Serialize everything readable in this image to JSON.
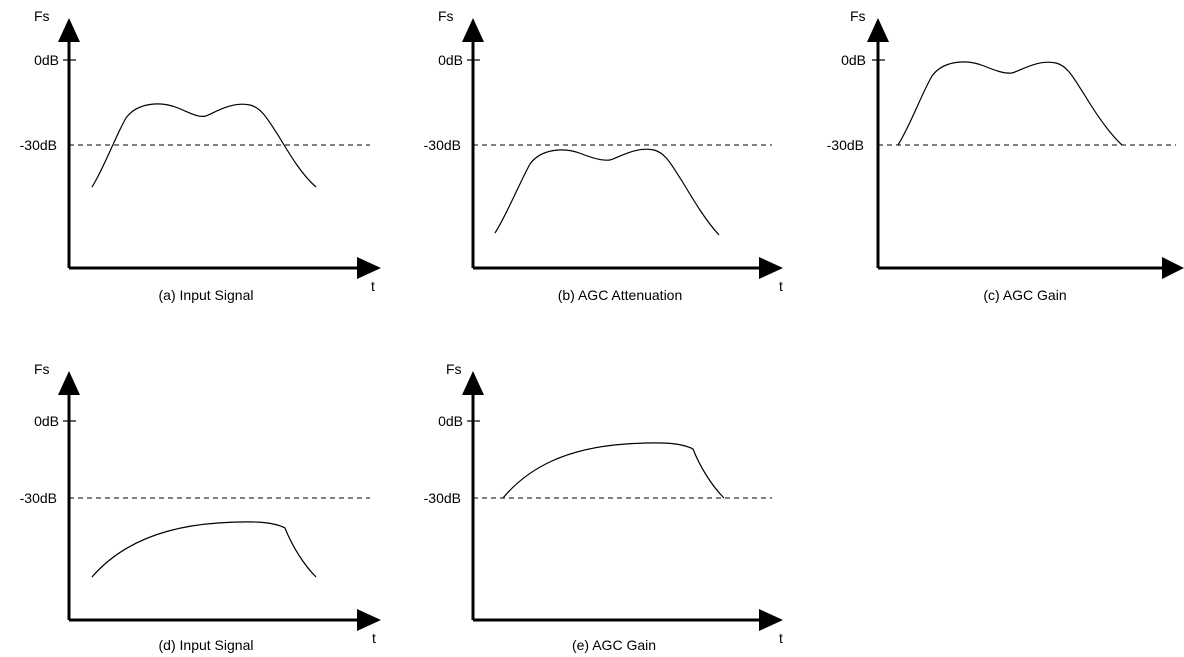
{
  "panels": [
    {
      "id": "a",
      "caption": "(a) Input Signal",
      "y_axis_label": "Fs",
      "x_axis_label": "t",
      "levels": [
        "0dB",
        "-30dB"
      ],
      "curve_shape": "double-hump"
    },
    {
      "id": "b",
      "caption": "(b) AGC Attenuation",
      "y_axis_label": "Fs",
      "x_axis_label": "t",
      "levels": [
        "0dB",
        "-30dB"
      ],
      "curve_shape": "double-hump"
    },
    {
      "id": "c",
      "caption": "(c) AGC Gain",
      "y_axis_label": "Fs",
      "x_axis_label": "",
      "levels": [
        "0dB",
        "-30dB"
      ],
      "curve_shape": "double-hump"
    },
    {
      "id": "d",
      "caption": "(d) Input Signal",
      "y_axis_label": "Fs",
      "x_axis_label": "t",
      "levels": [
        "0dB",
        "-30dB"
      ],
      "curve_shape": "plateau"
    },
    {
      "id": "e",
      "caption": "(e) AGC Gain",
      "y_axis_label": "Fs",
      "x_axis_label": "t",
      "levels": [
        "0dB",
        "-30dB"
      ],
      "curve_shape": "plateau"
    }
  ]
}
